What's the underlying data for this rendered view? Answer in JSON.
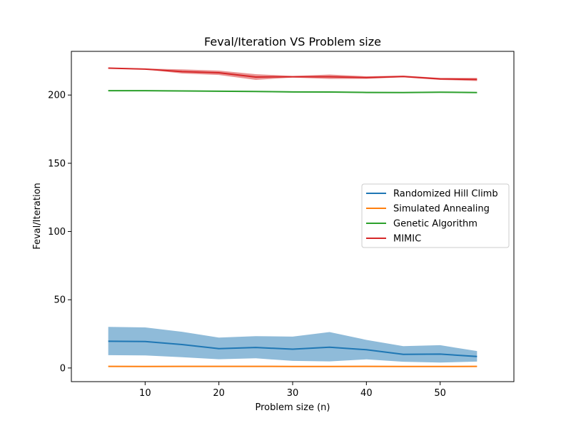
{
  "chart_data": {
    "type": "line",
    "title": "Feval/Iteration VS Problem size",
    "xlabel": "Problem size (n)",
    "ylabel": "Feval/Iteration",
    "xlim": [
      0,
      60
    ],
    "ylim": [
      -10,
      232
    ],
    "xticks": [
      10,
      20,
      30,
      40,
      50
    ],
    "yticks": [
      0,
      50,
      100,
      150,
      200
    ],
    "x": [
      5,
      10,
      15,
      20,
      25,
      30,
      35,
      40,
      45,
      50,
      55
    ],
    "legend_position": "center-right",
    "grid": false,
    "series": [
      {
        "name": "Randomized Hill Climb",
        "color": "#1f77b4",
        "values": [
          19.6,
          19.4,
          17.2,
          14.2,
          15.0,
          13.8,
          15.2,
          13.4,
          10.0,
          10.2,
          8.4
        ],
        "lower": [
          9.4,
          9.2,
          7.9,
          6.4,
          7.1,
          5.2,
          4.8,
          6.3,
          4.6,
          4.0,
          4.7
        ],
        "upper": [
          30.1,
          29.7,
          26.5,
          22.3,
          23.3,
          23.0,
          26.3,
          20.6,
          16.0,
          16.7,
          12.4
        ]
      },
      {
        "name": "Simulated Annealing",
        "color": "#ff7f0e",
        "values": [
          1.2,
          1.1,
          1.2,
          1.2,
          1.2,
          1.1,
          1.1,
          1.2,
          1.1,
          1.1,
          1.2
        ],
        "lower": [
          1.0,
          0.9,
          1.0,
          1.0,
          1.0,
          0.9,
          0.9,
          1.0,
          0.9,
          0.9,
          1.0
        ],
        "upper": [
          1.4,
          1.3,
          1.4,
          1.4,
          1.4,
          1.3,
          1.3,
          1.4,
          1.3,
          1.3,
          1.4
        ]
      },
      {
        "name": "Genetic Algorithm",
        "color": "#2ca02c",
        "values": [
          203.2,
          203.2,
          203.0,
          202.8,
          202.6,
          202.3,
          202.2,
          201.9,
          201.8,
          202.1,
          201.8
        ],
        "lower": [
          202.8,
          202.8,
          202.6,
          202.4,
          202.2,
          201.9,
          201.8,
          201.5,
          201.4,
          201.7,
          201.4
        ],
        "upper": [
          203.6,
          203.6,
          203.4,
          203.2,
          203.0,
          202.7,
          202.6,
          202.3,
          202.2,
          202.5,
          202.2
        ]
      },
      {
        "name": "MIMIC",
        "color": "#d62728",
        "values": [
          219.7,
          219.0,
          217.2,
          216.3,
          213.2,
          213.4,
          213.4,
          212.8,
          213.6,
          211.8,
          211.4
        ],
        "lower": [
          219.3,
          218.8,
          215.8,
          214.7,
          211.1,
          212.8,
          211.8,
          211.9,
          213.0,
          211.1,
          210.3
        ],
        "upper": [
          220.1,
          219.4,
          218.8,
          217.9,
          215.3,
          214.0,
          215.0,
          213.7,
          214.2,
          212.5,
          212.5
        ]
      }
    ]
  }
}
